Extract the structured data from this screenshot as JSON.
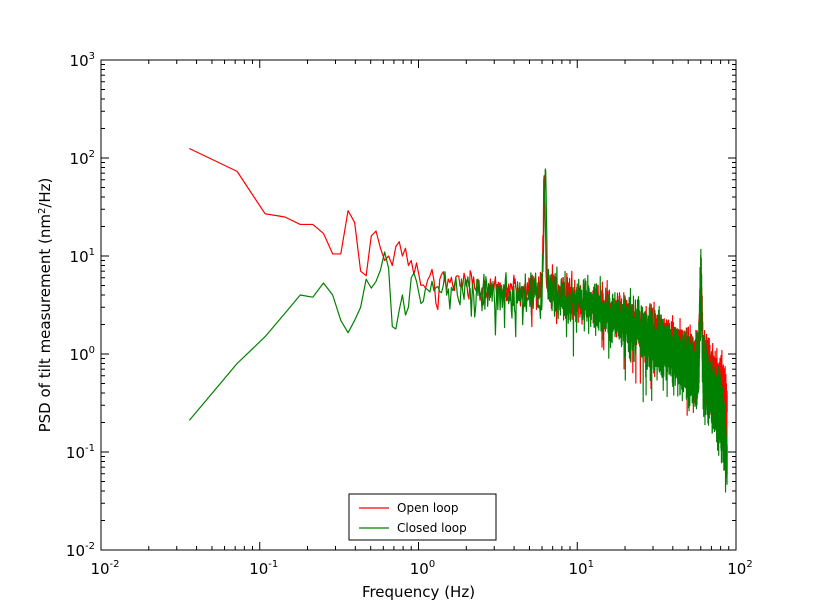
{
  "chart_data": {
    "type": "line",
    "xlabel": "Frequency (Hz)",
    "ylabel": {
      "prefix": "PSD of tilt measurement (nm",
      "superscript": "2",
      "suffix": "/Hz)"
    },
    "x_scale": "log",
    "y_scale": "log",
    "xlim": [
      0.01,
      100
    ],
    "ylim": [
      0.01,
      1000
    ],
    "x_ticks": [
      {
        "value": 0.01,
        "base": "10",
        "exp": "-2"
      },
      {
        "value": 0.1,
        "base": "10",
        "exp": "-1"
      },
      {
        "value": 1,
        "base": "10",
        "exp": "0"
      },
      {
        "value": 10,
        "base": "10",
        "exp": "1"
      },
      {
        "value": 100,
        "base": "10",
        "exp": "2"
      }
    ],
    "y_ticks": [
      {
        "value": 0.01,
        "base": "10",
        "exp": "-2"
      },
      {
        "value": 0.1,
        "base": "10",
        "exp": "-1"
      },
      {
        "value": 1,
        "base": "10",
        "exp": "0"
      },
      {
        "value": 10,
        "base": "10",
        "exp": "1"
      },
      {
        "value": 100,
        "base": "10",
        "exp": "2"
      },
      {
        "value": 1000,
        "base": "10",
        "exp": "3"
      }
    ],
    "grid": false,
    "legend_position": "bottom-center",
    "series": [
      {
        "name": "Open loop",
        "color": "#ff0000",
        "points": [
          [
            0.036,
            125
          ],
          [
            0.072,
            73
          ],
          [
            0.108,
            27
          ],
          [
            0.144,
            25
          ],
          [
            0.18,
            21
          ],
          [
            0.216,
            21
          ],
          [
            0.252,
            17
          ],
          [
            0.288,
            10.5
          ],
          [
            0.324,
            10.5
          ],
          [
            0.36,
            29
          ],
          [
            0.396,
            22
          ],
          [
            0.432,
            7
          ],
          [
            0.468,
            6.3
          ],
          [
            0.504,
            16
          ],
          [
            0.54,
            18
          ],
          [
            0.576,
            12
          ],
          [
            0.612,
            9
          ],
          [
            0.648,
            10
          ],
          [
            0.684,
            8
          ],
          [
            0.72,
            12.5
          ],
          [
            0.756,
            14
          ],
          [
            0.792,
            10
          ],
          [
            0.828,
            12
          ],
          [
            0.864,
            8
          ],
          [
            0.9,
            9
          ],
          [
            0.936,
            6.5
          ],
          [
            0.972,
            8.5
          ],
          [
            1.008,
            5
          ],
          [
            1.044,
            7.5
          ],
          [
            1.08,
            4.5
          ],
          [
            1.2,
            6
          ],
          [
            1.4,
            5.5
          ],
          [
            1.7,
            5
          ],
          [
            2.0,
            5.5
          ],
          [
            2.5,
            5
          ],
          [
            3.0,
            4.8
          ],
          [
            4.0,
            4.5
          ],
          [
            5.0,
            4.4
          ],
          [
            6.0,
            4.3
          ],
          [
            6.2,
            66
          ],
          [
            6.4,
            5
          ],
          [
            8.0,
            4
          ],
          [
            10.0,
            3.8
          ],
          [
            15.0,
            2.8
          ],
          [
            20.0,
            2.3
          ],
          [
            30.0,
            1.6
          ],
          [
            40.0,
            1.2
          ],
          [
            50.0,
            0.95
          ],
          [
            58.0,
            0.8
          ],
          [
            60.0,
            7.5
          ],
          [
            62.0,
            0.9
          ],
          [
            70.0,
            0.6
          ],
          [
            80.0,
            0.45
          ],
          [
            88.0,
            0.3
          ]
        ]
      },
      {
        "name": "Closed loop",
        "color": "#008000",
        "points": [
          [
            0.036,
            0.21
          ],
          [
            0.072,
            0.8
          ],
          [
            0.108,
            1.5
          ],
          [
            0.144,
            2.6
          ],
          [
            0.18,
            4.0
          ],
          [
            0.216,
            3.8
          ],
          [
            0.252,
            5.3
          ],
          [
            0.288,
            4.0
          ],
          [
            0.324,
            2.2
          ],
          [
            0.36,
            1.65
          ],
          [
            0.396,
            2.2
          ],
          [
            0.432,
            3.0
          ],
          [
            0.468,
            5.8
          ],
          [
            0.504,
            4.7
          ],
          [
            0.54,
            5.5
          ],
          [
            0.576,
            7.2
          ],
          [
            0.612,
            11
          ],
          [
            0.648,
            7.5
          ],
          [
            0.684,
            1.9
          ],
          [
            0.72,
            1.8
          ],
          [
            0.756,
            2.8
          ],
          [
            0.792,
            4.0
          ],
          [
            0.828,
            2.5
          ],
          [
            0.864,
            3.0
          ],
          [
            0.9,
            6.0
          ],
          [
            0.936,
            6.7
          ],
          [
            0.972,
            5.5
          ],
          [
            1.008,
            4.5
          ],
          [
            1.044,
            3.2
          ],
          [
            1.08,
            4.0
          ],
          [
            1.2,
            4.2
          ],
          [
            1.4,
            4.5
          ],
          [
            1.7,
            4.3
          ],
          [
            2.0,
            4.5
          ],
          [
            2.5,
            4.4
          ],
          [
            3.0,
            4.3
          ],
          [
            4.0,
            4.2
          ],
          [
            5.0,
            4.1
          ],
          [
            6.0,
            4.0
          ],
          [
            6.3,
            120
          ],
          [
            6.5,
            4.5
          ],
          [
            8.0,
            3.6
          ],
          [
            10.0,
            3.4
          ],
          [
            15.0,
            2.5
          ],
          [
            20.0,
            2.0
          ],
          [
            30.0,
            1.4
          ],
          [
            40.0,
            1.0
          ],
          [
            50.0,
            0.75
          ],
          [
            58.0,
            0.6
          ],
          [
            60.0,
            6.0
          ],
          [
            62.0,
            0.65
          ],
          [
            70.0,
            0.4
          ],
          [
            80.0,
            0.25
          ],
          [
            88.0,
            0.1
          ]
        ]
      }
    ],
    "jitter": {
      "start_hz": 1.0,
      "step_hz": 0.036,
      "open_loop_spread_decades": 0.22,
      "closed_loop_spread_decades": 0.26
    }
  }
}
